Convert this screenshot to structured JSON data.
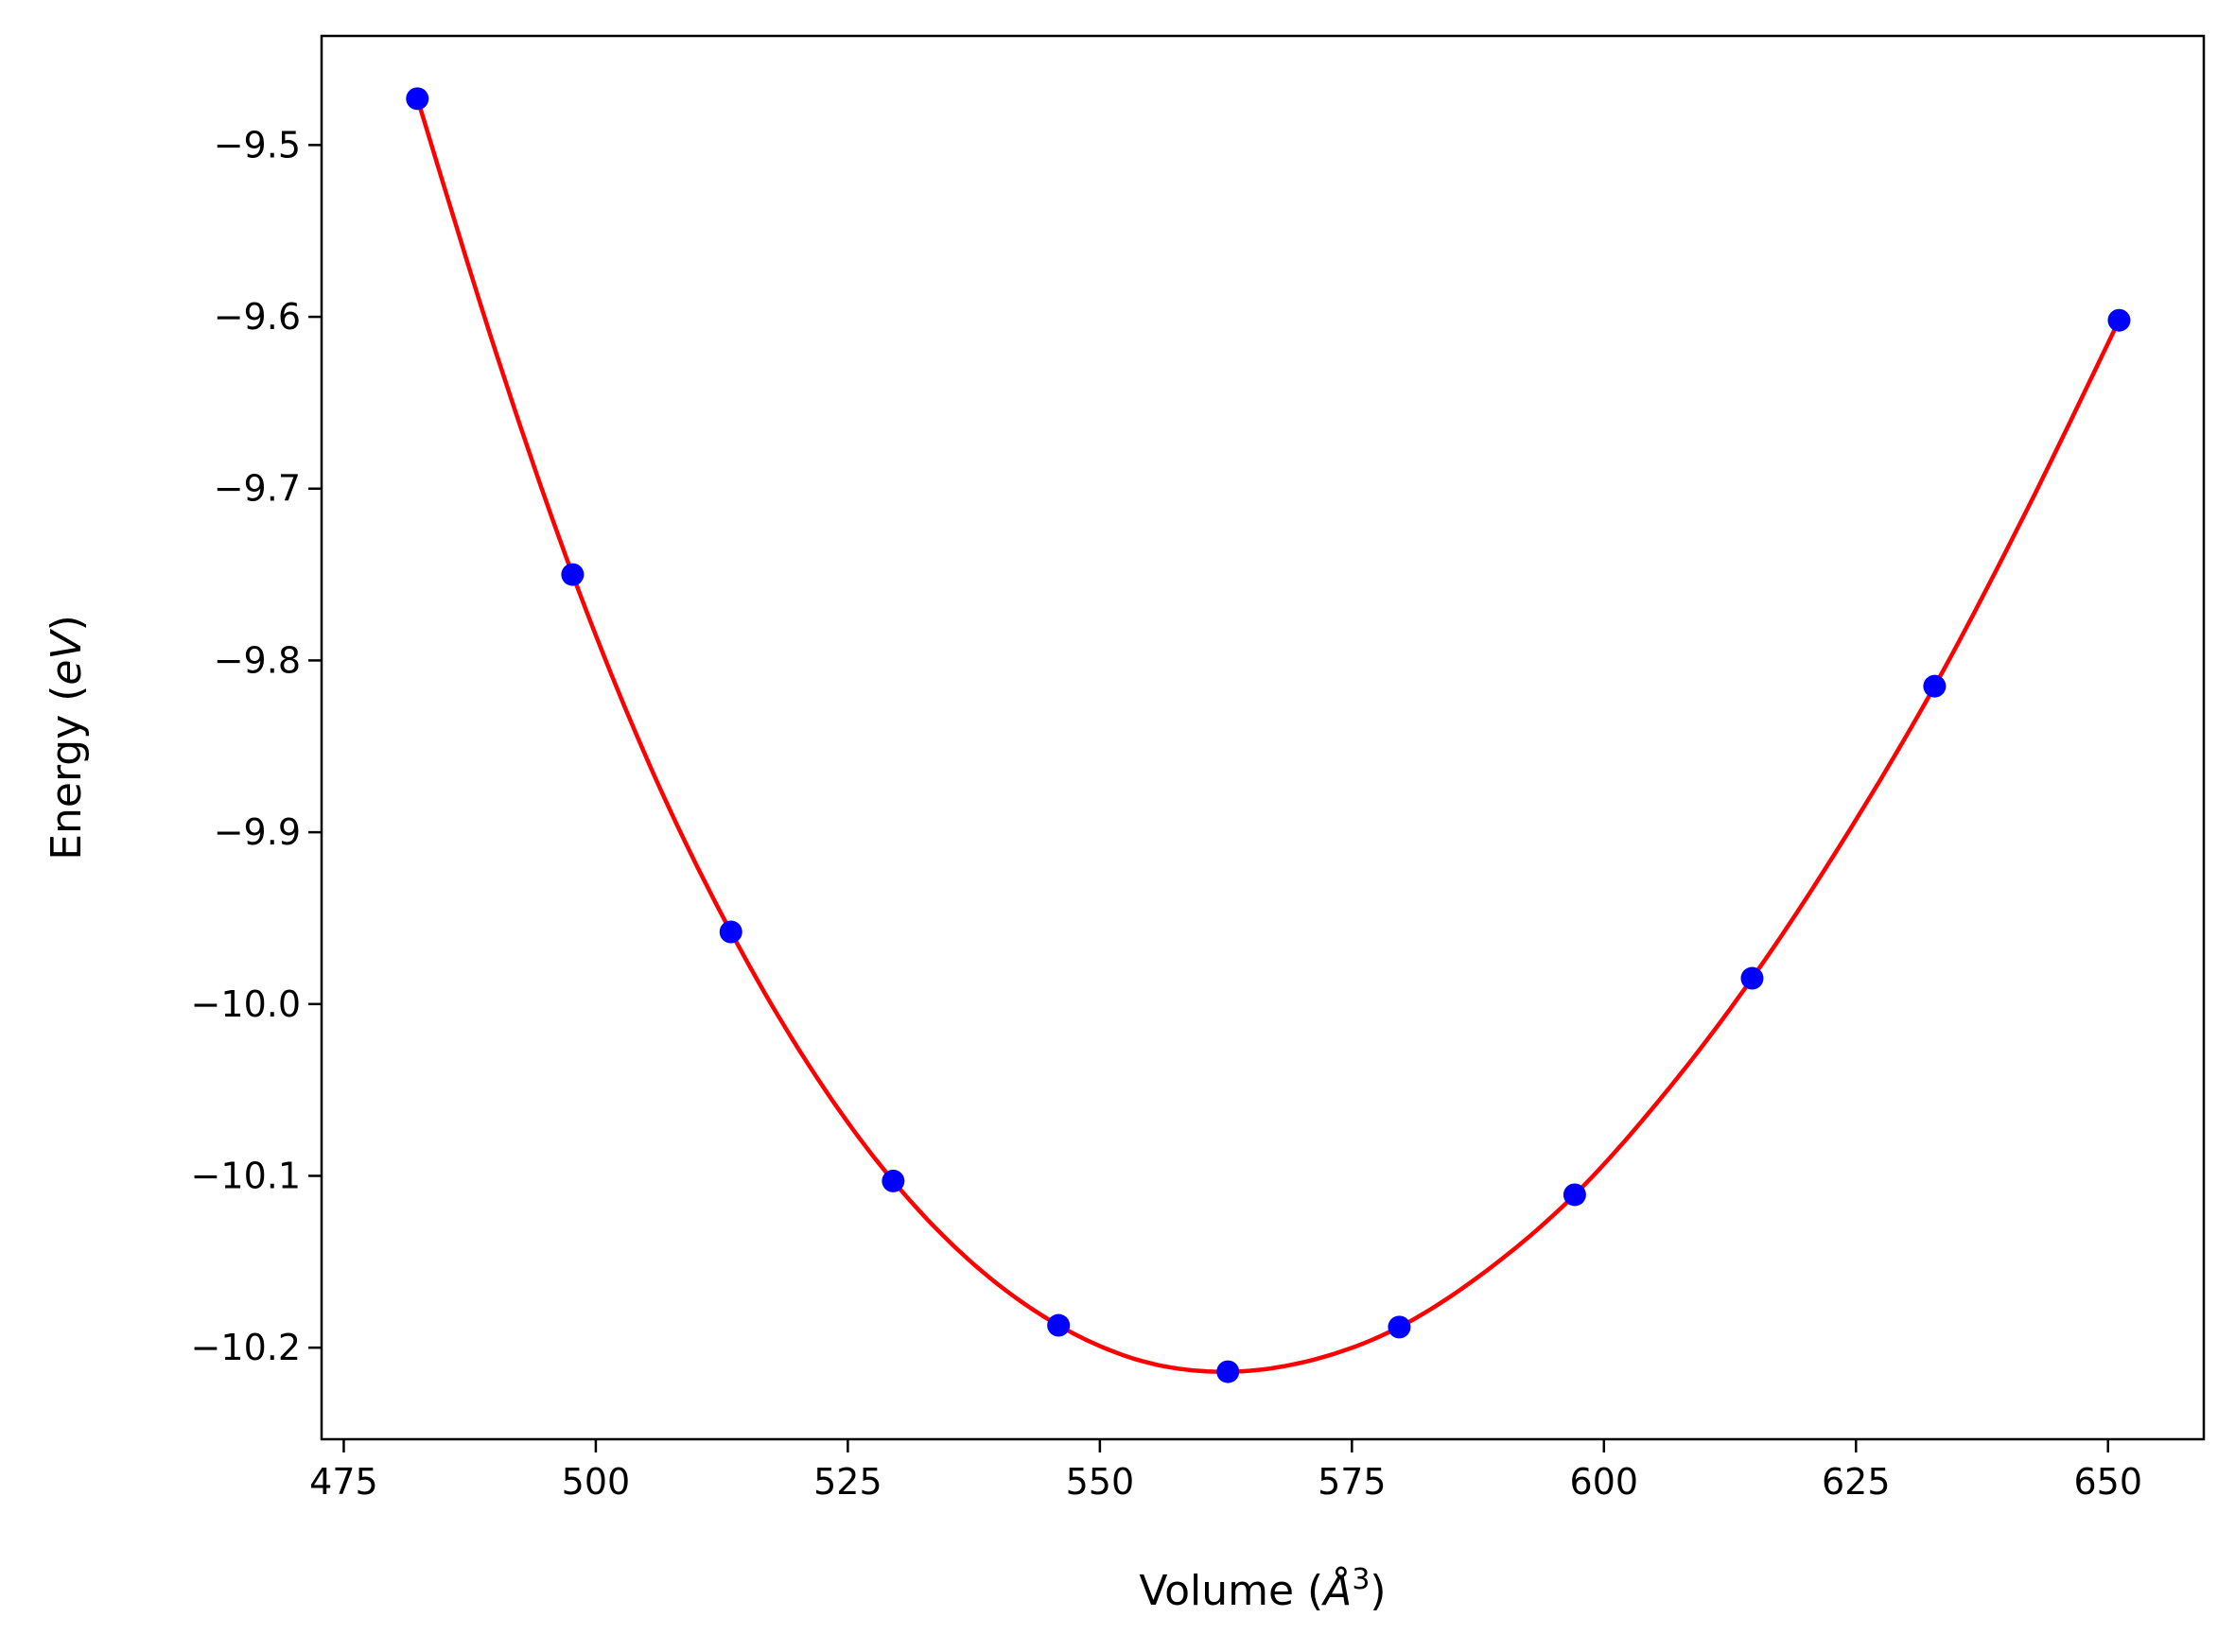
{
  "chart_data": {
    "type": "line",
    "title": "",
    "xlabel": {
      "pre": "Volume (",
      "italic": "Å",
      "sup": "3",
      "post": ")"
    },
    "ylabel": {
      "pre": "Energy (",
      "italic": "eV",
      "post": ")"
    },
    "xlim": [
      472.8,
      659.5
    ],
    "ylim": [
      -10.2533,
      -9.4365
    ],
    "xticks": [
      475,
      500,
      525,
      550,
      575,
      600,
      625,
      650
    ],
    "yticks": [
      -10.2,
      -10.1,
      -10.0,
      -9.9,
      -9.8,
      -9.7,
      -9.6,
      -9.5
    ],
    "xtick_labels": [
      "475",
      "500",
      "525",
      "550",
      "575",
      "600",
      "625",
      "650"
    ],
    "ytick_labels": [
      "−10.2",
      "−10.1",
      "−10.0",
      "−9.9",
      "−9.8",
      "−9.7",
      "−9.6",
      "−9.5"
    ],
    "grid": false,
    "legend": "none",
    "series": [
      {
        "kind": "points",
        "color": "#0000ff",
        "x": [
          482.3,
          497.7,
          513.4,
          529.5,
          545.9,
          562.7,
          579.7,
          597.1,
          614.7,
          632.8,
          651.1
        ],
        "y": [
          -9.473,
          -9.75,
          -9.958,
          -10.103,
          -10.187,
          -10.214,
          -10.188,
          -10.111,
          -9.985,
          -9.815,
          -9.602
        ]
      },
      {
        "kind": "fit",
        "color": "#ff0000",
        "x": [
          482.3,
          490.0,
          497.7,
          505.5,
          513.4,
          521.4,
          529.5,
          537.6,
          545.9,
          554.3,
          562.7,
          571.2,
          579.7,
          588.4,
          597.1,
          605.9,
          614.7,
          623.7,
          632.8,
          641.9,
          651.1
        ],
        "y": [
          -9.473,
          -9.619,
          -9.75,
          -9.863,
          -9.958,
          -10.038,
          -10.103,
          -10.152,
          -10.187,
          -10.208,
          -10.214,
          -10.207,
          -10.188,
          -10.155,
          -10.111,
          -10.053,
          -9.985,
          -9.905,
          -9.815,
          -9.713,
          -9.602
        ]
      }
    ]
  }
}
